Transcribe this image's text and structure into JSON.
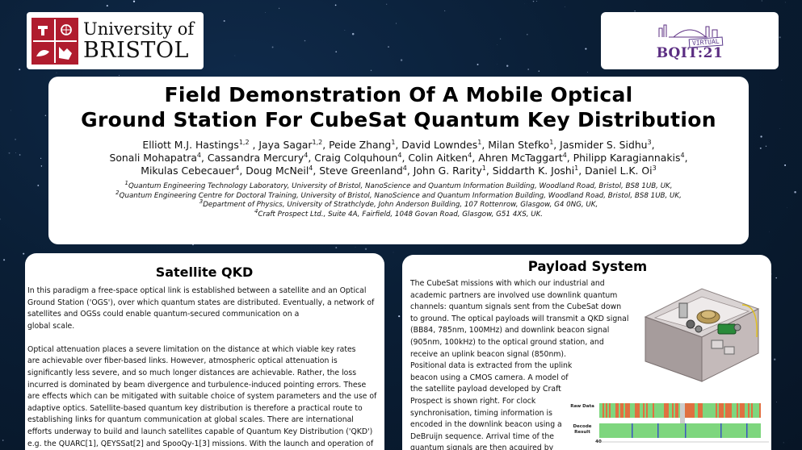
{
  "logos": {
    "bristol_line1": "University of",
    "bristol_line2": "BRISTOL",
    "bqit_virtual": "VIRTUAL",
    "bqit_name": "BQIT:21"
  },
  "title": {
    "line1": "Field Demonstration Of A Mobile Optical",
    "line2": "Ground Station For CubeSat Quantum Key Distribution"
  },
  "authors": [
    [
      {
        "name": "Elliott M.J. Hastings",
        "aff": "1,2",
        "sep": " , "
      },
      {
        "name": "Jaya Sagar",
        "aff": "1,2",
        "sep": ", "
      },
      {
        "name": "Peide Zhang",
        "aff": "1",
        "sep": ", "
      },
      {
        "name": "David Lowndes",
        "aff": "1",
        "sep": ", "
      },
      {
        "name": "Milan Stefko",
        "aff": "1",
        "sep": ", "
      },
      {
        "name": "Jasmider S. Sidhu",
        "aff": "3",
        "sep": ","
      }
    ],
    [
      {
        "name": "Sonali Mohapatra",
        "aff": "4",
        "sep": ", "
      },
      {
        "name": "Cassandra Mercury",
        "aff": "4",
        "sep": ", "
      },
      {
        "name": "Craig Colquhoun",
        "aff": "4",
        "sep": ", "
      },
      {
        "name": "Colin Aitken",
        "aff": "4",
        "sep": ", "
      },
      {
        "name": "Ahren McTaggart",
        "aff": "4",
        "sep": ", "
      },
      {
        "name": "Philipp Karagiannakis",
        "aff": "4",
        "sep": ","
      }
    ],
    [
      {
        "name": "Mikulas Cebecauer",
        "aff": "4",
        "sep": ", "
      },
      {
        "name": "Doug McNeil",
        "aff": "4",
        "sep": ", "
      },
      {
        "name": "Steve Greenland",
        "aff": "4",
        "sep": ", "
      },
      {
        "name": "John G. Rarity",
        "aff": "1",
        "sep": ", "
      },
      {
        "name": "Siddarth K. Joshi",
        "aff": "1",
        "sep": ", "
      },
      {
        "name": "Daniel L.K. Oi",
        "aff": "3",
        "sep": ""
      }
    ]
  ],
  "affiliations": [
    {
      "num": "1",
      "text": "Quantum Engineering Technology Laboratory, University of Bristol, NanoScience and Quantum Information Building, Woodland Road, Bristol, BS8 1UB, UK,"
    },
    {
      "num": "2",
      "text": "Quantum Engineering Centre for Doctoral Training, University of Bristol, NanoScience and Quantum Information Building, Woodland Road, Bristol, BS8 1UB, UK,"
    },
    {
      "num": "3",
      "text": "Department of Physics, University of Strathclyde, John Anderson Building, 107 Rottenrow, Glasgow, G4 0NG, UK,"
    },
    {
      "num": "4",
      "text": "Craft Prospect Ltd., Suite 4A, Fairfield, 1048 Govan Road, Glasgow, G51 4XS, UK."
    }
  ],
  "satellite_qkd": {
    "heading": "Satellite QKD",
    "para1": [
      "In this paradigm a free-space optical link is established between a satellite and an Optical",
      "Ground Station ('OGS'), over which quantum states are distributed. Eventually, a network of",
      "satellites and OGSs could enable quantum-secured communication on a",
      "global scale."
    ],
    "para2": [
      "Optical attenuation places a severe limitation on the distance at which viable key rates",
      "are achievable over fiber-based links. However, atmospheric optical attenuation is",
      "significantly less severe, and so much longer distances are achievable. Rather, the loss",
      "incurred is dominated by beam divergence and turbulence-induced pointing errors. These",
      "are effects which can be mitigated with suitable choice of system parameters and the use of",
      "adaptive optics. Satellite-based quantum key distribution is therefore a practical route to",
      "establishing links for quantum communication at global scales.  There are international",
      "efforts underway to build and launch satellites capable of Quantum Key Distribution ('QKD')",
      "e.g. the QUARC[1], QEYSSat[2] and SpooQy-1[3] missions. With the launch and operation of"
    ]
  },
  "payload_system": {
    "heading": "Payload System",
    "lines": [
      "The CubeSat missions with which our industrial and",
      "academic partners are involved use downlink quantum",
      "channels: quantum signals sent from the CubeSat down",
      "to ground. The optical payloads will transmit a QKD signal",
      "(BB84, 785nm, 100MHz) and downlink beacon signal",
      "(905nm, 100kHz) to the optical ground station, and",
      "receive an uplink beacon signal (850nm).",
      "Positional data is extracted from the uplink",
      "beacon using a CMOS camera. A model of",
      "the satellite payload developed by Craft",
      "Prospect is shown right. For clock",
      "synchronisation, timing information is",
      "encoded in the downlink beacon using a",
      "DeBruijn sequence. Arrival time of the",
      "quantum signals are then acquired by"
    ],
    "plot_labels": {
      "raw": "Raw Data",
      "decode_1": "Decode",
      "decode_2": "Result",
      "tick": "40"
    }
  },
  "colors": {
    "sky": "#0a1e35",
    "bristol_red": "#b01c2e",
    "bqit_purple": "#5b2d82",
    "signal_green": "#7ed67e",
    "signal_red": "#e07040"
  }
}
